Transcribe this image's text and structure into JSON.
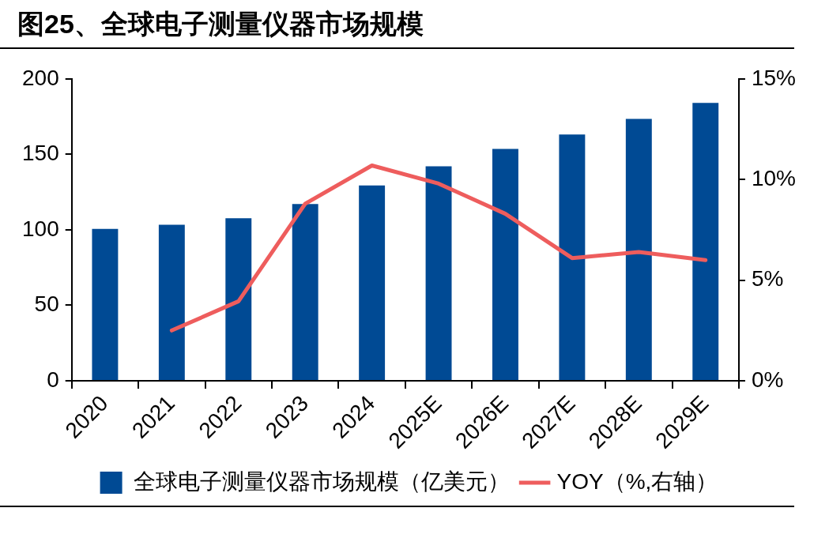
{
  "chart_data": {
    "type": "bar",
    "title": "图25、全球电子测量仪器市场规模",
    "categories": [
      "2020",
      "2021",
      "2022",
      "2023",
      "2024",
      "2025E",
      "2026E",
      "2027E",
      "2028E",
      "2029E"
    ],
    "series": [
      {
        "name": "全球电子测量仪器市场规模（亿美元）",
        "type": "bar",
        "color": "#004a94",
        "values": [
          100.6,
          103.4,
          107.7,
          117.2,
          129.5,
          142.2,
          153.7,
          163.2,
          173.5,
          184.2
        ]
      },
      {
        "name": "YOY（%,右轴）",
        "type": "line",
        "axis": "y2",
        "color": "#ee5d5d",
        "values": [
          null,
          2.5,
          3.95,
          8.8,
          10.7,
          9.8,
          8.3,
          6.1,
          6.4,
          6.0
        ]
      }
    ],
    "ylim": [
      0,
      200
    ],
    "yticks": [
      0,
      50,
      100,
      150,
      200
    ],
    "y2lim": [
      0,
      15
    ],
    "y2ticks": [
      {
        "value": 0,
        "label": "0%"
      },
      {
        "value": 5,
        "label": "5%"
      },
      {
        "value": 10,
        "label": "10%"
      },
      {
        "value": 15,
        "label": "15%"
      }
    ],
    "grid": false,
    "legend": "bottom",
    "marker": "none",
    "line_style": "solid"
  }
}
